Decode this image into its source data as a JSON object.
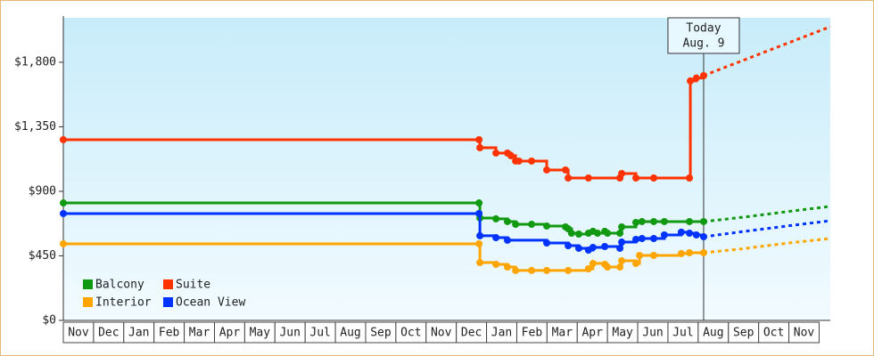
{
  "chart_data": {
    "type": "line",
    "step": true,
    "ylim": [
      0,
      2110
    ],
    "yticks": [
      {
        "value": 0,
        "label": "$0"
      },
      {
        "value": 450,
        "label": "$450"
      },
      {
        "value": 900,
        "label": "$900"
      },
      {
        "value": 1350,
        "label": "$1,350"
      },
      {
        "value": 1800,
        "label": "$1,800"
      }
    ],
    "xlim": [
      0,
      25.37
    ],
    "xticks": [
      {
        "value": 0.5,
        "label": "Nov"
      },
      {
        "value": 1.5,
        "label": "Dec"
      },
      {
        "value": 2.5,
        "label": "Jan"
      },
      {
        "value": 3.5,
        "label": "Feb"
      },
      {
        "value": 4.5,
        "label": "Mar"
      },
      {
        "value": 5.5,
        "label": "Apr"
      },
      {
        "value": 6.5,
        "label": "May"
      },
      {
        "value": 7.5,
        "label": "Jun"
      },
      {
        "value": 8.5,
        "label": "Jul"
      },
      {
        "value": 9.5,
        "label": "Aug"
      },
      {
        "value": 10.5,
        "label": "Sep"
      },
      {
        "value": 11.5,
        "label": "Oct"
      },
      {
        "value": 12.5,
        "label": "Nov"
      },
      {
        "value": 13.5,
        "label": "Dec"
      },
      {
        "value": 14.5,
        "label": "Jan"
      },
      {
        "value": 15.5,
        "label": "Feb"
      },
      {
        "value": 16.5,
        "label": "Mar"
      },
      {
        "value": 17.5,
        "label": "Apr"
      },
      {
        "value": 18.5,
        "label": "May"
      },
      {
        "value": 19.5,
        "label": "Jun"
      },
      {
        "value": 20.5,
        "label": "Jul"
      },
      {
        "value": 21.5,
        "label": "Aug"
      },
      {
        "value": 22.5,
        "label": "Sep"
      },
      {
        "value": 23.5,
        "label": "Oct"
      },
      {
        "value": 24.5,
        "label": "Nov"
      }
    ],
    "legend": "lower left",
    "today": {
      "x": 21.18,
      "label": "Today",
      "date": "Aug. 9"
    },
    "series": [
      {
        "name": "Balcony",
        "color": "#119911",
        "x": [
          0,
          13.75,
          13.78,
          14.31,
          14.69,
          14.96,
          15.49,
          15.99,
          16.61,
          16.7,
          16.81,
          17.05,
          17.37,
          17.52,
          17.67,
          17.91,
          18.0,
          18.41,
          18.47,
          18.94,
          19.14,
          19.53,
          19.88,
          20.71,
          21.18
        ],
        "values": [
          819,
          819,
          714,
          708,
          689,
          670,
          670,
          658,
          652,
          639,
          608,
          602,
          608,
          621,
          608,
          621,
          608,
          608,
          652,
          683,
          689,
          689,
          689,
          689,
          689
        ],
        "forecast": {
          "x": [
            21.18,
            22.5,
            24,
            25.37
          ],
          "values": [
            689,
            720,
            760,
            795
          ]
        }
      },
      {
        "name": "Suite",
        "color": "#ff3300",
        "x": [
          0,
          13.75,
          13.78,
          14.31,
          14.69,
          14.81,
          14.96,
          15.07,
          15.49,
          15.99,
          16.61,
          16.7,
          17.37,
          18.41,
          18.47,
          18.94,
          19.53,
          20.71,
          20.74,
          20.94,
          21.18
        ],
        "values": [
          1260,
          1260,
          1204,
          1167,
          1167,
          1148,
          1111,
          1111,
          1111,
          1049,
          1049,
          993,
          993,
          993,
          1024,
          993,
          993,
          993,
          1670,
          1690,
          1707
        ],
        "forecast": {
          "x": [
            21.18,
            25.37
          ],
          "values": [
            1707,
            2048
          ]
        }
      },
      {
        "name": "Interior",
        "color": "#ffa500",
        "x": [
          0,
          13.75,
          13.78,
          14.31,
          14.69,
          14.96,
          15.49,
          15.99,
          16.7,
          17.37,
          17.52,
          17.91,
          18.0,
          18.41,
          18.47,
          18.94,
          19.06,
          19.53,
          20.44,
          20.71,
          21.18
        ],
        "values": [
          534,
          534,
          403,
          391,
          372,
          348,
          348,
          348,
          348,
          360,
          397,
          391,
          372,
          372,
          416,
          397,
          453,
          453,
          466,
          472,
          472
        ],
        "forecast": {
          "x": [
            21.18,
            22.5,
            24,
            25.37
          ],
          "values": [
            472,
            500,
            540,
            571
          ]
        }
      },
      {
        "name": "Ocean View",
        "color": "#0033ff",
        "x": [
          0,
          13.75,
          13.78,
          14.31,
          14.69,
          15.99,
          16.7,
          17.05,
          17.37,
          17.52,
          17.91,
          18.41,
          18.47,
          18.94,
          19.14,
          19.53,
          19.88,
          20.44,
          20.71,
          20.94,
          21.18
        ],
        "values": [
          745,
          745,
          590,
          577,
          559,
          540,
          521,
          503,
          490,
          509,
          515,
          503,
          546,
          565,
          571,
          571,
          596,
          615,
          608,
          596,
          583
        ],
        "forecast": {
          "x": [
            21.18,
            22.5,
            24,
            25.37
          ],
          "values": [
            583,
            620,
            660,
            695
          ]
        }
      }
    ]
  }
}
